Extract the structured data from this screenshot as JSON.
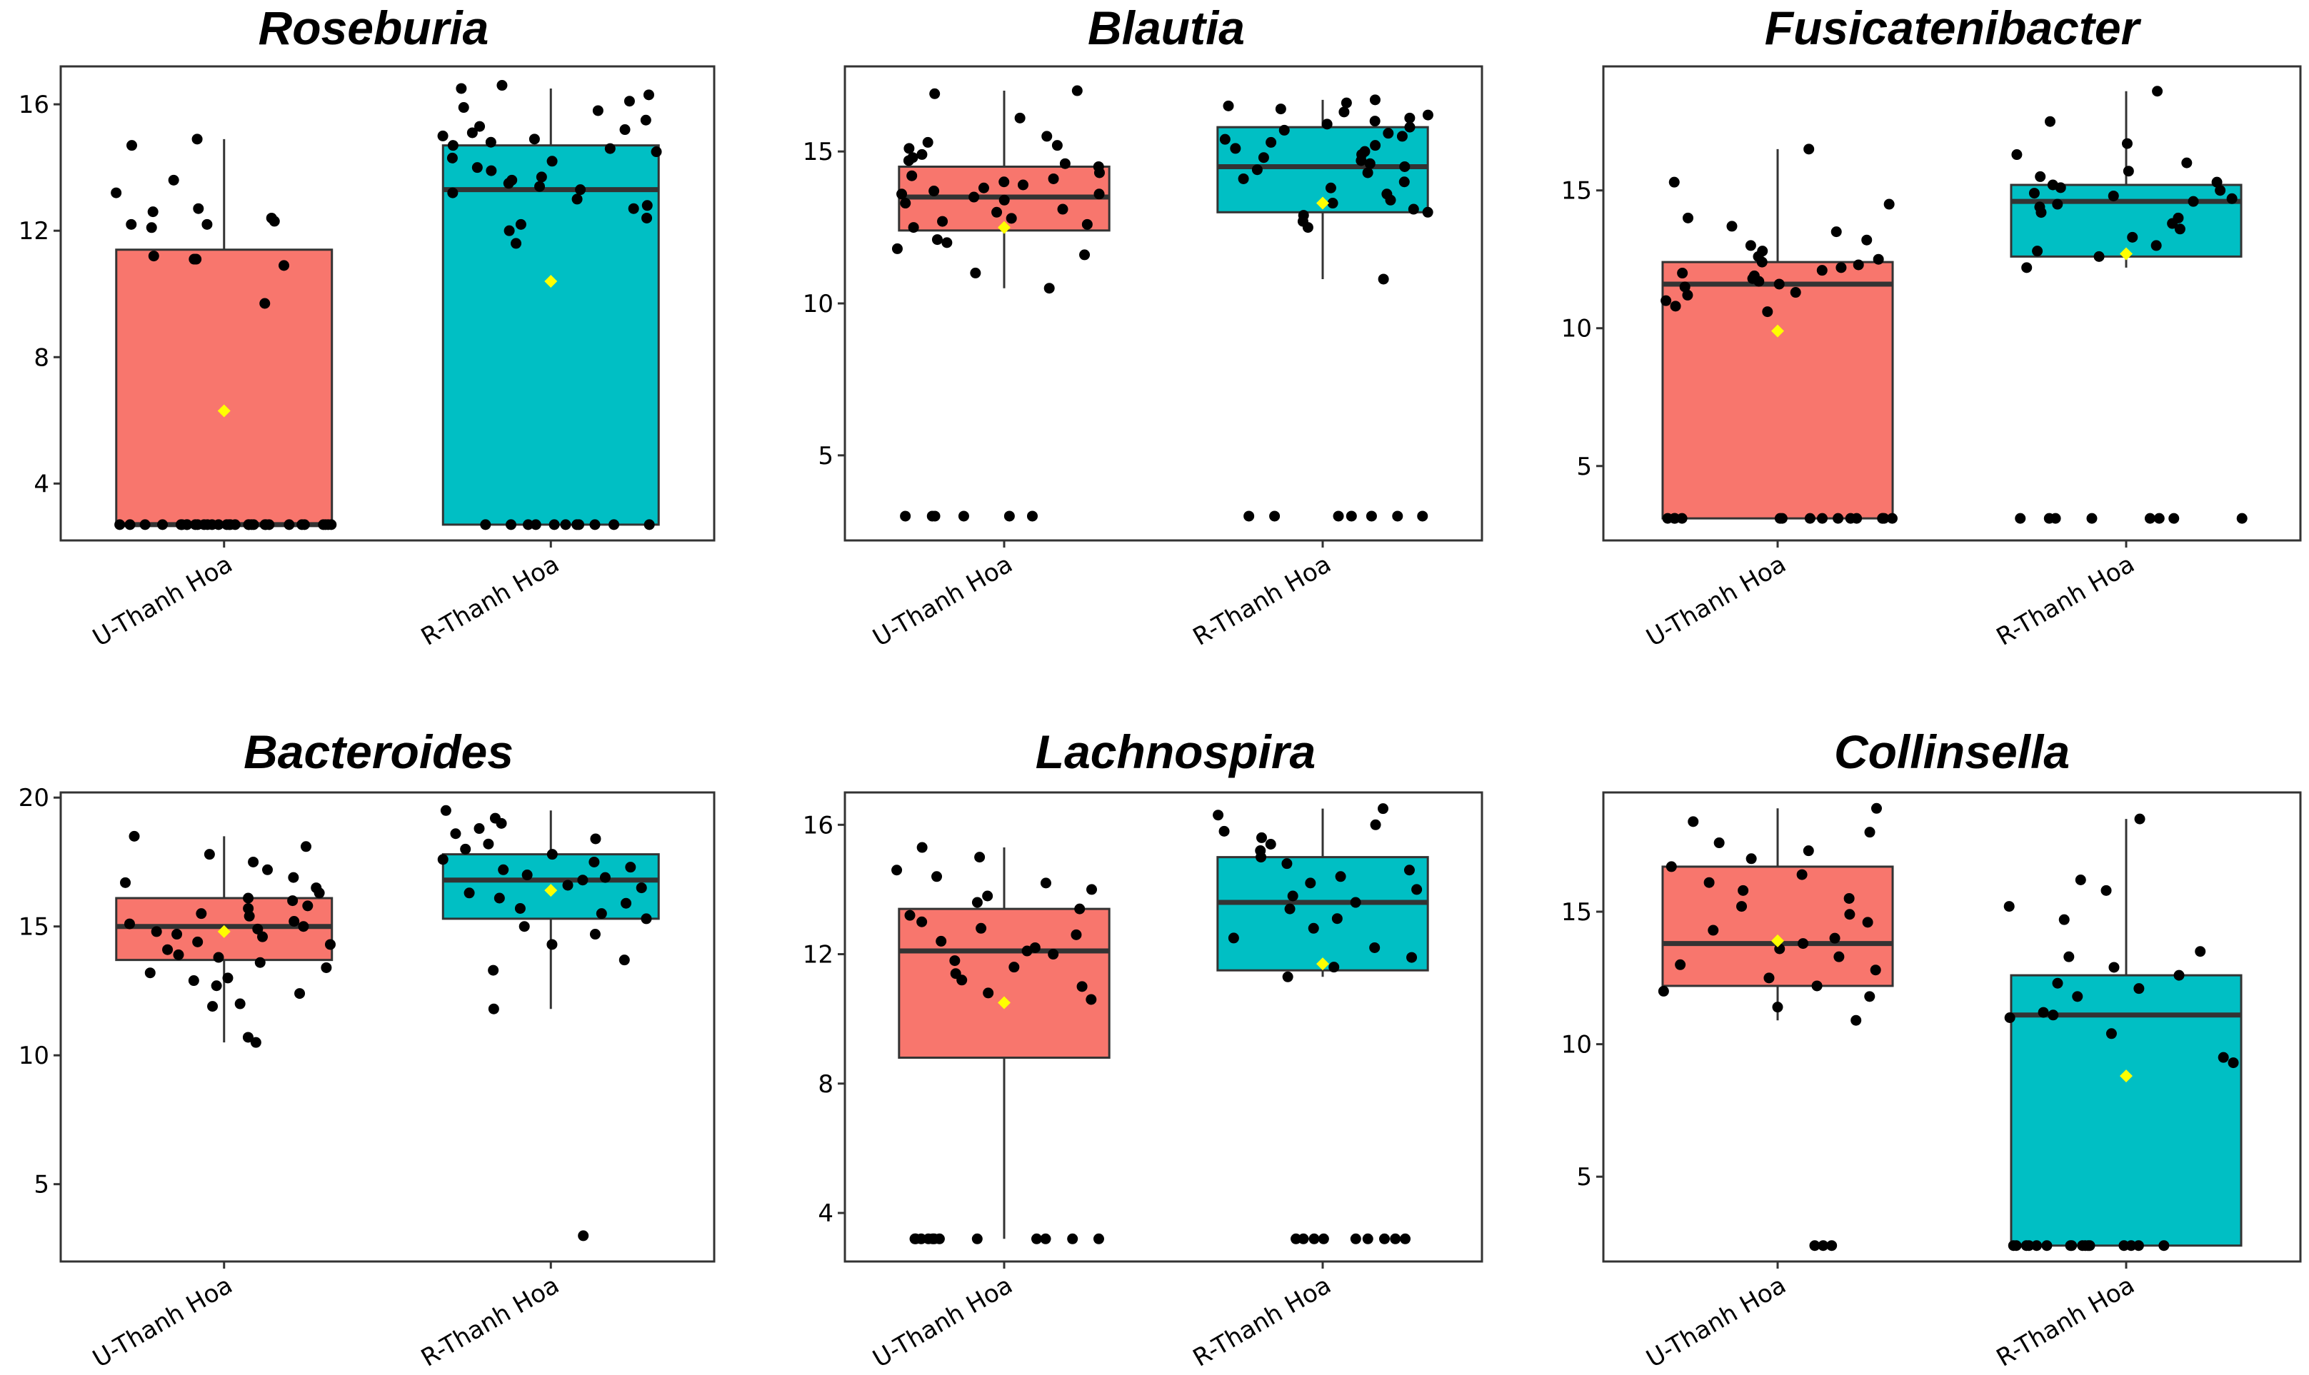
{
  "colors": {
    "u_box": "#f8766d",
    "r_box": "#00bfc4",
    "mean_marker": "#ffff00",
    "points": "#000000",
    "frame": "#333333"
  },
  "chart_data": [
    {
      "type": "box",
      "title": "Roseburia",
      "ylim": [
        2.2,
        17.2
      ],
      "yticks": [
        4,
        8,
        12,
        16
      ],
      "categories": [
        "U-Thanh Hoa",
        "R-Thanh Hoa"
      ],
      "groups": [
        {
          "name": "U-Thanh Hoa",
          "q1": 2.7,
          "median": 2.7,
          "q3": 11.4,
          "whisker_low": 2.7,
          "whisker_high": 14.9,
          "mean": 6.3,
          "points": [
            2.7,
            2.7,
            2.7,
            2.7,
            2.7,
            2.7,
            2.7,
            2.7,
            2.7,
            2.7,
            2.7,
            2.7,
            2.7,
            2.7,
            2.7,
            2.7,
            2.7,
            2.7,
            2.7,
            2.7,
            2.7,
            2.7,
            2.7,
            2.7,
            2.7,
            2.7,
            2.7,
            2.7,
            2.7,
            2.7,
            2.7,
            2.7,
            9.7,
            10.9,
            11.1,
            11.1,
            11.2,
            12.1,
            12.2,
            12.2,
            12.3,
            12.4,
            12.6,
            12.7,
            13.2,
            13.6,
            14.7,
            14.9
          ]
        },
        {
          "name": "R-Thanh Hoa",
          "q1": 2.7,
          "median": 13.3,
          "q3": 14.7,
          "whisker_low": 2.7,
          "whisker_high": 16.5,
          "mean": 10.4,
          "points": [
            2.7,
            2.7,
            2.7,
            2.7,
            2.7,
            2.7,
            2.7,
            2.7,
            2.7,
            2.7,
            2.7,
            11.6,
            12.0,
            12.2,
            12.4,
            12.7,
            12.8,
            13.0,
            13.2,
            13.3,
            13.4,
            13.5,
            13.6,
            13.7,
            13.9,
            14.0,
            14.2,
            14.3,
            14.5,
            14.6,
            14.7,
            14.8,
            14.9,
            15.0,
            15.1,
            15.2,
            15.3,
            15.5,
            15.8,
            15.9,
            16.1,
            16.3,
            16.5,
            16.6
          ]
        }
      ]
    },
    {
      "type": "box",
      "title": "Blautia",
      "ylim": [
        2.2,
        17.8
      ],
      "yticks": [
        5,
        10,
        15
      ],
      "categories": [
        "U-Thanh Hoa",
        "R-Thanh Hoa"
      ],
      "groups": [
        {
          "name": "U-Thanh Hoa",
          "q1": 12.4,
          "median": 13.5,
          "q3": 14.5,
          "whisker_low": 10.5,
          "whisker_high": 17.0,
          "mean": 12.5,
          "points": [
            3.0,
            3.0,
            3.0,
            3.0,
            3.0,
            3.0,
            10.5,
            11.0,
            11.6,
            11.8,
            12.0,
            12.1,
            12.5,
            12.6,
            12.7,
            12.8,
            13.0,
            13.1,
            13.3,
            13.4,
            13.5,
            13.6,
            13.6,
            13.7,
            13.8,
            13.9,
            14.0,
            14.1,
            14.2,
            14.3,
            14.5,
            14.6,
            14.7,
            14.8,
            14.9,
            15.1,
            15.2,
            15.3,
            15.5,
            16.1,
            16.9,
            17.0
          ]
        },
        {
          "name": "R-Thanh Hoa",
          "q1": 13.0,
          "median": 14.5,
          "q3": 15.8,
          "whisker_low": 10.8,
          "whisker_high": 16.7,
          "mean": 13.3,
          "points": [
            3.0,
            3.0,
            3.0,
            3.0,
            3.0,
            3.0,
            3.0,
            10.8,
            12.5,
            12.7,
            12.9,
            13.0,
            13.1,
            13.3,
            13.4,
            13.6,
            13.8,
            14.0,
            14.1,
            14.3,
            14.4,
            14.5,
            14.6,
            14.7,
            14.8,
            14.9,
            15.0,
            15.1,
            15.2,
            15.3,
            15.4,
            15.5,
            15.6,
            15.7,
            15.8,
            15.9,
            16.0,
            16.1,
            16.2,
            16.3,
            16.4,
            16.5,
            16.6,
            16.7
          ]
        }
      ]
    },
    {
      "type": "box",
      "title": "Fusicatenibacter",
      "ylim": [
        2.3,
        19.5
      ],
      "yticks": [
        5,
        10,
        15
      ],
      "categories": [
        "U-Thanh Hoa",
        "R-Thanh Hoa"
      ],
      "groups": [
        {
          "name": "U-Thanh Hoa",
          "q1": 3.1,
          "median": 11.6,
          "q3": 12.4,
          "whisker_low": 3.1,
          "whisker_high": 16.5,
          "mean": 9.9,
          "points": [
            3.1,
            3.1,
            3.1,
            3.1,
            3.1,
            3.1,
            3.1,
            3.1,
            3.1,
            3.1,
            3.1,
            3.1,
            3.1,
            3.1,
            3.1,
            10.6,
            10.8,
            11.0,
            11.2,
            11.3,
            11.5,
            11.6,
            11.7,
            11.8,
            11.9,
            12.0,
            12.1,
            12.2,
            12.3,
            12.4,
            12.5,
            12.6,
            12.8,
            13.0,
            13.2,
            13.5,
            13.7,
            14.0,
            14.5,
            15.3,
            16.5
          ]
        },
        {
          "name": "R-Thanh Hoa",
          "q1": 12.6,
          "median": 14.6,
          "q3": 15.2,
          "whisker_low": 12.2,
          "whisker_high": 18.6,
          "mean": 12.7,
          "points": [
            3.1,
            3.1,
            3.1,
            3.1,
            3.1,
            3.1,
            3.1,
            3.1,
            12.2,
            12.6,
            12.8,
            13.0,
            13.3,
            13.6,
            13.8,
            14.0,
            14.2,
            14.4,
            14.5,
            14.6,
            14.7,
            14.8,
            14.9,
            15.0,
            15.1,
            15.2,
            15.3,
            15.5,
            15.7,
            16.0,
            16.3,
            16.7,
            17.5,
            18.6
          ]
        }
      ]
    },
    {
      "type": "box",
      "title": "Bacteroides",
      "ylim": [
        2.0,
        20.2
      ],
      "yticks": [
        5,
        10,
        15,
        20
      ],
      "categories": [
        "U-Thanh Hoa",
        "R-Thanh Hoa"
      ],
      "groups": [
        {
          "name": "U-Thanh Hoa",
          "q1": 13.7,
          "median": 15.0,
          "q3": 16.1,
          "whisker_low": 10.5,
          "whisker_high": 18.5,
          "mean": 14.8,
          "points": [
            10.5,
            10.7,
            11.9,
            12.0,
            12.4,
            12.7,
            12.9,
            13.0,
            13.2,
            13.4,
            13.6,
            13.8,
            13.9,
            14.1,
            14.3,
            14.4,
            14.6,
            14.7,
            14.8,
            14.9,
            15.0,
            15.1,
            15.2,
            15.4,
            15.5,
            15.7,
            15.8,
            16.0,
            16.1,
            16.3,
            16.5,
            16.7,
            16.9,
            17.2,
            17.5,
            17.8,
            18.1,
            18.5
          ]
        },
        {
          "name": "R-Thanh Hoa",
          "q1": 15.3,
          "median": 16.8,
          "q3": 17.8,
          "whisker_low": 11.8,
          "whisker_high": 19.5,
          "mean": 16.4,
          "points": [
            3.0,
            11.8,
            13.3,
            13.7,
            14.3,
            14.7,
            15.0,
            15.3,
            15.5,
            15.7,
            15.9,
            16.1,
            16.3,
            16.5,
            16.6,
            16.8,
            16.9,
            17.0,
            17.2,
            17.3,
            17.5,
            17.6,
            17.8,
            18.0,
            18.2,
            18.4,
            18.6,
            18.8,
            19.0,
            19.2,
            19.5
          ]
        }
      ]
    },
    {
      "type": "box",
      "title": "Lachnospira",
      "ylim": [
        2.5,
        17.0
      ],
      "yticks": [
        4,
        8,
        12,
        16
      ],
      "categories": [
        "U-Thanh Hoa",
        "R-Thanh Hoa"
      ],
      "groups": [
        {
          "name": "U-Thanh Hoa",
          "q1": 8.8,
          "median": 12.1,
          "q3": 13.4,
          "whisker_low": 3.2,
          "whisker_high": 15.3,
          "mean": 10.5,
          "points": [
            3.2,
            3.2,
            3.2,
            3.2,
            3.2,
            3.2,
            3.2,
            3.2,
            3.2,
            3.2,
            3.2,
            3.2,
            10.6,
            10.8,
            11.0,
            11.2,
            11.4,
            11.6,
            11.8,
            12.0,
            12.1,
            12.2,
            12.4,
            12.6,
            12.8,
            13.0,
            13.2,
            13.4,
            13.6,
            13.8,
            14.0,
            14.2,
            14.4,
            14.6,
            15.0,
            15.3
          ]
        },
        {
          "name": "R-Thanh Hoa",
          "q1": 11.5,
          "median": 13.6,
          "q3": 15.0,
          "whisker_low": 11.3,
          "whisker_high": 16.5,
          "mean": 11.7,
          "points": [
            3.2,
            3.2,
            3.2,
            3.2,
            3.2,
            3.2,
            3.2,
            3.2,
            3.2,
            11.3,
            11.6,
            11.9,
            12.2,
            12.5,
            12.8,
            13.1,
            13.4,
            13.6,
            13.8,
            14.0,
            14.2,
            14.4,
            14.6,
            14.8,
            15.0,
            15.2,
            15.4,
            15.6,
            15.8,
            16.0,
            16.3,
            16.5
          ]
        }
      ]
    },
    {
      "type": "box",
      "title": "Collinsella",
      "ylim": [
        1.8,
        19.5
      ],
      "yticks": [
        5,
        10,
        15
      ],
      "categories": [
        "U-Thanh Hoa",
        "R-Thanh Hoa"
      ],
      "groups": [
        {
          "name": "U-Thanh Hoa",
          "q1": 12.2,
          "median": 13.8,
          "q3": 16.7,
          "whisker_low": 10.9,
          "whisker_high": 18.9,
          "mean": 13.9,
          "points": [
            2.4,
            2.4,
            2.4,
            10.9,
            11.4,
            11.8,
            12.0,
            12.2,
            12.5,
            12.8,
            13.0,
            13.3,
            13.6,
            13.8,
            14.0,
            14.3,
            14.6,
            14.9,
            15.2,
            15.5,
            15.8,
            16.1,
            16.4,
            16.7,
            17.0,
            17.3,
            17.6,
            18.0,
            18.4,
            18.9
          ]
        },
        {
          "name": "R-Thanh Hoa",
          "q1": 2.4,
          "median": 11.1,
          "q3": 12.6,
          "whisker_low": 2.4,
          "whisker_high": 18.5,
          "mean": 8.8,
          "points": [
            2.4,
            2.4,
            2.4,
            2.4,
            2.4,
            2.4,
            2.4,
            2.4,
            2.4,
            2.4,
            2.4,
            2.4,
            2.4,
            2.4,
            2.4,
            2.4,
            9.3,
            9.5,
            10.4,
            11.0,
            11.1,
            11.2,
            11.8,
            12.1,
            12.3,
            12.6,
            12.9,
            13.3,
            13.5,
            14.7,
            15.2,
            15.8,
            16.2,
            18.5
          ]
        }
      ]
    }
  ]
}
